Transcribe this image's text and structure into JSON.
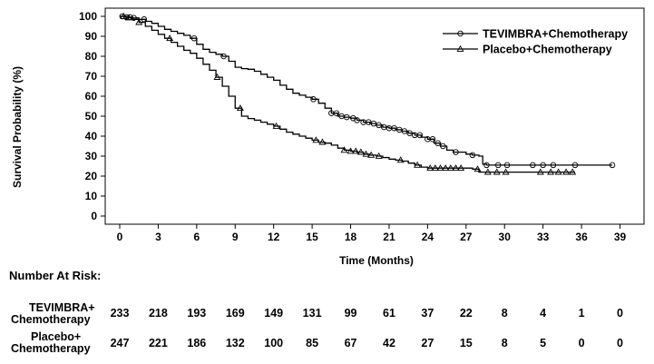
{
  "chart_data": {
    "type": "line",
    "ylabel": "Survival Probability (%)",
    "xlabel": "Time (Months)",
    "xlim": [
      0,
      39
    ],
    "ylim": [
      0,
      100
    ],
    "xticks": [
      0,
      3,
      6,
      9,
      12,
      15,
      18,
      21,
      24,
      27,
      30,
      33,
      36,
      39
    ],
    "yticks": [
      0,
      10,
      20,
      30,
      40,
      50,
      60,
      70,
      80,
      90,
      100
    ],
    "legend_position": "top-right",
    "grid": false,
    "series": [
      {
        "name": "TEVIMBRA+Chemotherapy",
        "marker": "circle",
        "x": [
          0,
          0.5,
          1,
          1.5,
          2,
          2.5,
          3,
          3.5,
          4,
          4.5,
          5,
          5.5,
          6,
          6.5,
          7,
          7.5,
          8,
          8.5,
          9,
          9.5,
          10,
          10.5,
          11,
          11.5,
          12,
          12.5,
          13,
          13.5,
          14,
          14.5,
          15,
          15.5,
          16,
          16.5,
          17,
          17.5,
          18,
          18.5,
          19,
          19.5,
          20,
          20.5,
          21,
          21.5,
          22,
          22.5,
          23,
          23.5,
          24,
          24.5,
          25,
          25.5,
          26,
          26.5,
          27,
          27.5,
          28,
          28.3,
          28.6,
          29,
          30,
          31,
          32,
          33,
          34,
          35,
          36,
          37,
          38.4
        ],
        "y": [
          100,
          99.6,
          99.2,
          98.5,
          97.5,
          96.5,
          95,
          93.5,
          92.5,
          91.5,
          90.5,
          89,
          86,
          83.5,
          82,
          81,
          80,
          77.5,
          74.5,
          73.8,
          73.5,
          72.5,
          71,
          69.5,
          68,
          65.5,
          63.5,
          61.5,
          60.5,
          59.5,
          58.5,
          56.5,
          54,
          51.5,
          50,
          49.5,
          49,
          48,
          47,
          46.3,
          45.5,
          44.5,
          44,
          43.2,
          42.5,
          41.5,
          40.5,
          39.5,
          38.5,
          36.5,
          35,
          33,
          32,
          32,
          31,
          30.5,
          30,
          26,
          25.5,
          25.5,
          25.5,
          25.5,
          25.5,
          25.5,
          25.5,
          25.5,
          25.5,
          25.5,
          25.5
        ],
        "censored_x": [
          0.2,
          0.5,
          0.8,
          1.1,
          1.9,
          5.8,
          8.1,
          15.1,
          16.5,
          16.9,
          17.3,
          17.7,
          18.2,
          18.5,
          19,
          19.4,
          19.8,
          20.2,
          20.6,
          21,
          21.4,
          21.8,
          22.2,
          22.6,
          23,
          23.4,
          24,
          24.4,
          24.8,
          25.2,
          26.2,
          27.5,
          28.6,
          29.5,
          30.2,
          32.2,
          33,
          33.8,
          35.5,
          38.4
        ]
      },
      {
        "name": "Placebo+Chemotherapy",
        "marker": "triangle",
        "x": [
          0,
          0.5,
          1,
          1.5,
          2,
          2.5,
          3,
          3.5,
          4,
          4.5,
          5,
          5.5,
          6,
          6.5,
          7,
          7.5,
          8,
          8.5,
          9,
          9.5,
          10,
          10.5,
          11,
          11.5,
          12,
          12.5,
          13,
          13.5,
          14,
          14.5,
          15,
          15.5,
          16,
          16.5,
          17,
          17.5,
          18,
          18.5,
          19,
          19.5,
          20,
          20.5,
          21,
          21.5,
          22,
          22.5,
          23,
          23.5,
          24,
          25,
          26,
          27,
          27.5,
          28,
          29,
          30,
          31,
          32,
          33,
          34,
          35,
          35.5
        ],
        "y": [
          100,
          99.3,
          98.5,
          97,
          95,
          93,
          91,
          89,
          87,
          85,
          83,
          81.5,
          79,
          76,
          73,
          69.5,
          65,
          60,
          54,
          50,
          48.8,
          48,
          47,
          46,
          45,
          43.5,
          42,
          41,
          40,
          39,
          38,
          37,
          36.5,
          35.5,
          34,
          33,
          32.5,
          32,
          31,
          30.5,
          30,
          29.3,
          28.5,
          28,
          27.5,
          26.5,
          25.5,
          24.5,
          24,
          24,
          24,
          24,
          23.5,
          22,
          22,
          22,
          22,
          22,
          22,
          22,
          22,
          22
        ],
        "censored_x": [
          0.3,
          0.7,
          1.5,
          3.9,
          7.6,
          9.4,
          12.2,
          15.3,
          15.8,
          17.5,
          18,
          18.4,
          18.8,
          19.2,
          19.6,
          20.2,
          21.9,
          23.2,
          24.2,
          24.6,
          25,
          25.4,
          25.8,
          26.2,
          26.6,
          27.9,
          28.7,
          29.4,
          30.1,
          32.8,
          33.6,
          34.2,
          34.8,
          35.3
        ]
      }
    ]
  },
  "risk_table": {
    "title": "Number At Risk:",
    "rows": [
      {
        "label_line1": "TEVIMBRA+",
        "label_line2": "Chemotherapy",
        "values": [
          233,
          218,
          193,
          169,
          149,
          131,
          99,
          61,
          37,
          22,
          8,
          4,
          1,
          0
        ]
      },
      {
        "label_line1": "Placebo+",
        "label_line2": "Chemotherapy",
        "values": [
          247,
          221,
          186,
          132,
          100,
          85,
          67,
          42,
          27,
          15,
          8,
          5,
          0,
          0
        ]
      }
    ]
  }
}
